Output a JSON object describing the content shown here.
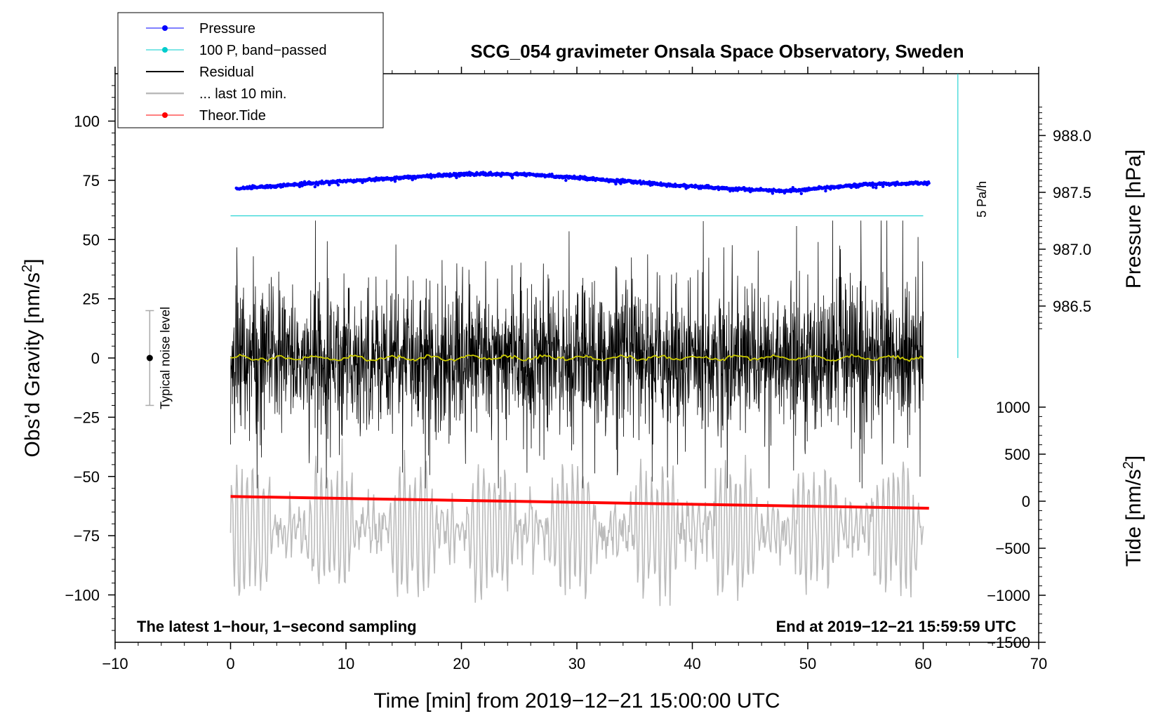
{
  "chart_data": {
    "type": "line",
    "title": "SCG_054 gravimeter Onsala Space Observatory, Sweden",
    "xlabel": "Time [min] from 2019−12−21 15:00:00 UTC",
    "ylabel_left": "Obs’d Gravity [nm/s²]",
    "ylabel_right_top": "Pressure [hPa]",
    "ylabel_right_bottom": "Tide [nm/s²]",
    "xlim": [
      -10,
      70
    ],
    "ylim_left": [
      -120,
      120
    ],
    "x_ticks": [
      -10,
      0,
      10,
      20,
      30,
      40,
      50,
      60,
      70
    ],
    "x_tick_labels": [
      "−10",
      "0",
      "10",
      "20",
      "30",
      "40",
      "50",
      "60",
      "70"
    ],
    "y_left_ticks": [
      100,
      75,
      50,
      25,
      0,
      -25,
      -50,
      -75,
      -100
    ],
    "y_left_tick_labels": [
      "100",
      "75",
      "50",
      "25",
      "0",
      "−25",
      "−50",
      "−75",
      "−100"
    ],
    "pressure_axis": {
      "ticks": [
        988.0,
        987.5,
        987.0,
        986.5
      ],
      "tick_labels": [
        "988.0",
        "987.5",
        "987.0",
        "986.5"
      ]
    },
    "tide_axis": {
      "ticks": [
        1000,
        500,
        0,
        -500,
        -1000,
        -1500
      ],
      "tick_labels": [
        "1000",
        "500",
        "0",
        "−500",
        "−1000",
        "−1500"
      ]
    },
    "legend": {
      "placement": "top-left",
      "entries": [
        {
          "label": "Pressure",
          "color": "#0000ff",
          "marker": true
        },
        {
          "label": "100 P, band−passed",
          "color": "#00cccc",
          "marker": true
        },
        {
          "label": "Residual",
          "color": "#000000",
          "marker": false
        },
        {
          "label": "... last 10 min.",
          "color": "#bbbbbb",
          "marker": false
        },
        {
          "label": "Theor.Tide",
          "color": "#ff0000",
          "marker": true
        }
      ]
    },
    "series": [
      {
        "name": "Pressure",
        "color": "#0000ff",
        "axis": "pressure",
        "x_range": [
          0.5,
          60.5
        ],
        "description_values": {
          "x": [
            0,
            10,
            20,
            25,
            30,
            40,
            48,
            55,
            60
          ],
          "y_hpa": [
            987.53,
            987.6,
            987.66,
            987.66,
            987.63,
            987.55,
            987.51,
            987.57,
            987.58
          ]
        }
      },
      {
        "name": "100 P, band−passed",
        "color": "#00cccc",
        "axis": "left",
        "x_range": [
          0,
          60
        ],
        "value": 60
      },
      {
        "name": "Residual",
        "color": "#000000",
        "axis": "left",
        "x_range": [
          0,
          60
        ],
        "approx_amplitude": 25,
        "peak_range": [
          -55,
          58
        ]
      },
      {
        "name": "Residual smoothed",
        "color": "#cccc00",
        "axis": "left",
        "x_range": [
          0,
          60
        ],
        "value": 0
      },
      {
        "name": "... last 10 min.",
        "color": "#bbbbbb",
        "axis": "tide",
        "x_range": [
          0,
          60
        ]
      },
      {
        "name": "Theor.Tide",
        "color": "#ff0000",
        "axis": "tide",
        "x": [
          0,
          60.5
        ],
        "y_nm_s2": [
          50,
          -75
        ]
      }
    ],
    "noise_bar": {
      "x": -7,
      "center": 0,
      "low": -20,
      "high": 20,
      "label": "Typical noise level"
    },
    "scale_bar": {
      "x": 63,
      "from": 0,
      "to": 120,
      "label": "5 Pa/h"
    },
    "annotations": {
      "bottom_left": "The latest 1−hour, 1−second sampling",
      "bottom_right": "End at 2019−12−21 15:59:59 UTC"
    }
  }
}
